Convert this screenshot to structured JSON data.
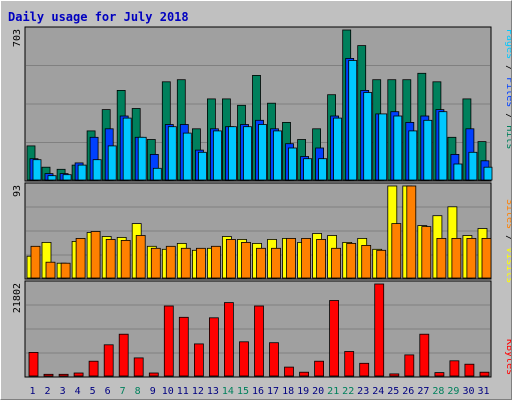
{
  "title": "Daily usage for July 2018",
  "colors": {
    "background": "#C0C0C0",
    "plot": "#A0A0A0",
    "gridline": "#808080",
    "title": "#0000C0",
    "pages": "#00C8FF",
    "files": "#0040FF",
    "hits": "#00805C",
    "sites": "#FF8000",
    "visits": "#FFFF00",
    "kbytes": "#FF0000",
    "weekday_label": "#000080",
    "weekend_label": "#00805C"
  },
  "axis_labels": {
    "hits_max": "703",
    "visits_max": "93",
    "kbytes_max": "21802"
  },
  "legends": {
    "top": [
      {
        "text": "Pages",
        "color": "#00C8FF"
      },
      {
        "text": " / ",
        "color": "#000000"
      },
      {
        "text": "Files",
        "color": "#0040FF"
      },
      {
        "text": " / ",
        "color": "#000000"
      },
      {
        "text": "Hits",
        "color": "#00805C"
      }
    ],
    "middle": [
      {
        "text": "Sites",
        "color": "#FF8000"
      },
      {
        "text": " / ",
        "color": "#000000"
      },
      {
        "text": "Visits",
        "color": "#FFFF00"
      }
    ],
    "bottom": [
      {
        "text": "KBytes",
        "color": "#FF0000"
      }
    ]
  },
  "chart_data": [
    {
      "type": "bar",
      "name": "hits-files-pages",
      "categories": [
        "1",
        "2",
        "3",
        "4",
        "5",
        "6",
        "7",
        "8",
        "9",
        "10",
        "11",
        "12",
        "13",
        "14",
        "15",
        "16",
        "17",
        "18",
        "19",
        "20",
        "21",
        "22",
        "23",
        "24",
        "25",
        "26",
        "27",
        "28",
        "29",
        "30",
        "31"
      ],
      "weekend": [
        false,
        false,
        false,
        false,
        false,
        false,
        true,
        true,
        false,
        false,
        false,
        false,
        false,
        true,
        true,
        false,
        false,
        false,
        false,
        false,
        true,
        true,
        false,
        false,
        false,
        false,
        false,
        true,
        true,
        false,
        false
      ],
      "ylim": [
        0,
        703
      ],
      "series": [
        {
          "name": "Hits",
          "values": [
            160,
            60,
            50,
            70,
            230,
            330,
            420,
            335,
            190,
            460,
            470,
            240,
            380,
            380,
            350,
            490,
            360,
            270,
            190,
            240,
            400,
            703,
            630,
            470,
            470,
            470,
            500,
            460,
            200,
            380,
            180
          ]
        },
        {
          "name": "Files",
          "values": [
            100,
            30,
            30,
            80,
            200,
            240,
            300,
            200,
            120,
            260,
            260,
            140,
            240,
            250,
            260,
            280,
            240,
            170,
            110,
            150,
            300,
            570,
            420,
            310,
            320,
            270,
            300,
            330,
            120,
            240,
            90
          ]
        },
        {
          "name": "Pages",
          "values": [
            95,
            20,
            25,
            70,
            95,
            160,
            290,
            200,
            55,
            250,
            220,
            130,
            230,
            250,
            250,
            260,
            230,
            150,
            100,
            100,
            290,
            560,
            410,
            310,
            300,
            230,
            280,
            320,
            75,
            130,
            60
          ]
        }
      ]
    },
    {
      "type": "bar",
      "name": "visits-sites",
      "categories": [
        "1",
        "2",
        "3",
        "4",
        "5",
        "6",
        "7",
        "8",
        "9",
        "10",
        "11",
        "12",
        "13",
        "14",
        "15",
        "16",
        "17",
        "18",
        "19",
        "20",
        "21",
        "22",
        "23",
        "24",
        "25",
        "26",
        "27",
        "28",
        "29",
        "30",
        "31"
      ],
      "ylim": [
        0,
        93
      ],
      "series": [
        {
          "name": "Visits",
          "values": [
            22,
            36,
            15,
            37,
            46,
            42,
            41,
            55,
            32,
            29,
            35,
            28,
            30,
            42,
            39,
            35,
            39,
            40,
            36,
            45,
            43,
            36,
            40,
            29,
            93,
            93,
            53,
            63,
            72,
            43,
            50
          ]
        },
        {
          "name": "Sites",
          "values": [
            32,
            16,
            15,
            40,
            47,
            39,
            38,
            43,
            30,
            32,
            30,
            30,
            32,
            39,
            36,
            30,
            30,
            40,
            40,
            39,
            30,
            35,
            33,
            28,
            55,
            93,
            52,
            40,
            40,
            40,
            40
          ]
        }
      ]
    },
    {
      "type": "bar",
      "name": "kbytes",
      "categories": [
        "1",
        "2",
        "3",
        "4",
        "5",
        "6",
        "7",
        "8",
        "9",
        "10",
        "11",
        "12",
        "13",
        "14",
        "15",
        "16",
        "17",
        "18",
        "19",
        "20",
        "21",
        "22",
        "23",
        "24",
        "25",
        "26",
        "27",
        "28",
        "29",
        "30",
        "31"
      ],
      "ylim": [
        0,
        21802
      ],
      "series": [
        {
          "name": "KBytes",
          "values": [
            5600,
            400,
            400,
            700,
            3500,
            7400,
            9900,
            4300,
            700,
            16600,
            13900,
            7600,
            13800,
            17400,
            8100,
            16600,
            7900,
            2100,
            900,
            3500,
            17900,
            5800,
            3000,
            21802,
            500,
            5000,
            9900,
            800,
            3600,
            2800,
            900
          ]
        }
      ]
    }
  ]
}
